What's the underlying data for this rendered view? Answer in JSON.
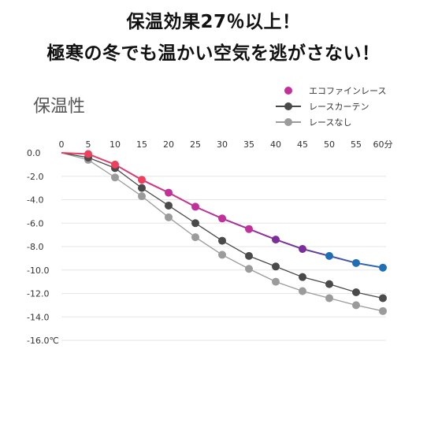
{
  "headline": {
    "line1": "保温効果27％以上！",
    "line2": "極寒の冬でも温かい空気を逃がさない！"
  },
  "chart_data": {
    "type": "line",
    "title": "保温性",
    "x": [
      0,
      5,
      10,
      15,
      20,
      25,
      30,
      35,
      40,
      45,
      50,
      55,
      60
    ],
    "x_tick_labels": [
      "0",
      "5",
      "10",
      "15",
      "20",
      "25",
      "30",
      "35",
      "40",
      "45",
      "50",
      "55",
      "60分"
    ],
    "y_tick_values": [
      0,
      -2,
      -4,
      -6,
      -8,
      -10,
      -12,
      -14,
      -16
    ],
    "y_tick_labels": [
      "0.0",
      "-2.0",
      "-4.0",
      "-6.0",
      "-8.0",
      "-10.0",
      "-12.0",
      "-14.0",
      "-16.0℃"
    ],
    "ylim": [
      -16,
      0
    ],
    "xlim": [
      0,
      60
    ],
    "grid": true,
    "legend_position": "top-right",
    "series": [
      {
        "name": "エコファインレース",
        "values": [
          0,
          -0.1,
          -1.0,
          -2.3,
          -3.4,
          -4.6,
          -5.6,
          -6.5,
          -7.4,
          -8.2,
          -8.8,
          -9.4,
          -9.8
        ],
        "marker_x": [
          5,
          10,
          15,
          20,
          25,
          30,
          35,
          40,
          45,
          50,
          55,
          60
        ],
        "gradient": [
          "#ee3f5c",
          "#c2309a",
          "#7c2e9b",
          "#1f6fb5"
        ]
      },
      {
        "name": "レースカーテン",
        "values": [
          0,
          -0.4,
          -1.3,
          -3.0,
          -4.5,
          -6.0,
          -7.5,
          -8.8,
          -9.7,
          -10.6,
          -11.2,
          -11.9,
          -12.4
        ],
        "marker_x": [
          5,
          10,
          15,
          20,
          25,
          30,
          35,
          40,
          45,
          50,
          55,
          60
        ],
        "color": "#4a4a4a"
      },
      {
        "name": "レースなし",
        "values": [
          0,
          -0.6,
          -2.1,
          -3.7,
          -5.5,
          -7.2,
          -8.7,
          -9.9,
          -11.0,
          -11.8,
          -12.4,
          -13.0,
          -13.5
        ],
        "marker_x": [
          5,
          10,
          15,
          20,
          25,
          30,
          35,
          40,
          45,
          50,
          55,
          60
        ],
        "color": "#9b9b9b"
      }
    ]
  }
}
